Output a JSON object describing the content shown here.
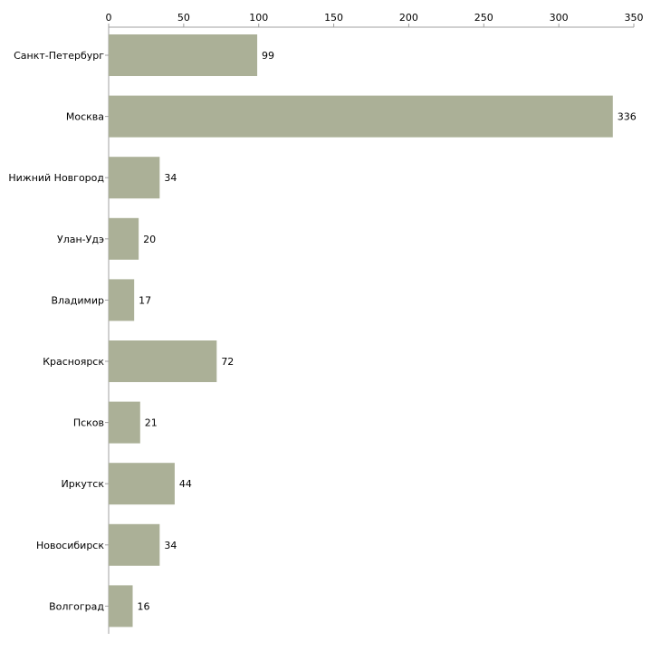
{
  "chart_data": {
    "type": "bar",
    "orientation": "horizontal",
    "title": "",
    "xlabel": "",
    "ylabel": "",
    "xlim": [
      0,
      350
    ],
    "ticks": [
      0,
      50,
      100,
      150,
      200,
      250,
      300,
      350
    ],
    "tick_labels": [
      "0",
      "50",
      "100",
      "150",
      "200",
      "250",
      "300",
      "350"
    ],
    "categories": [
      "Санкт-Петербург",
      "Москва",
      "Нижний Новгород",
      "Улан-Удэ",
      "Владимир",
      "Красноярск",
      "Псков",
      "Иркутск",
      "Новосибирск",
      "Волгоград"
    ],
    "values": [
      99,
      336,
      34,
      20,
      17,
      72,
      21,
      44,
      34,
      16
    ],
    "value_labels": [
      "99",
      "336",
      "34",
      "20",
      "17",
      "72",
      "21",
      "44",
      "34",
      "16"
    ],
    "bar_color": "#abb097",
    "axis_color": "#a0a0a0",
    "grid": false,
    "legend": "none"
  }
}
